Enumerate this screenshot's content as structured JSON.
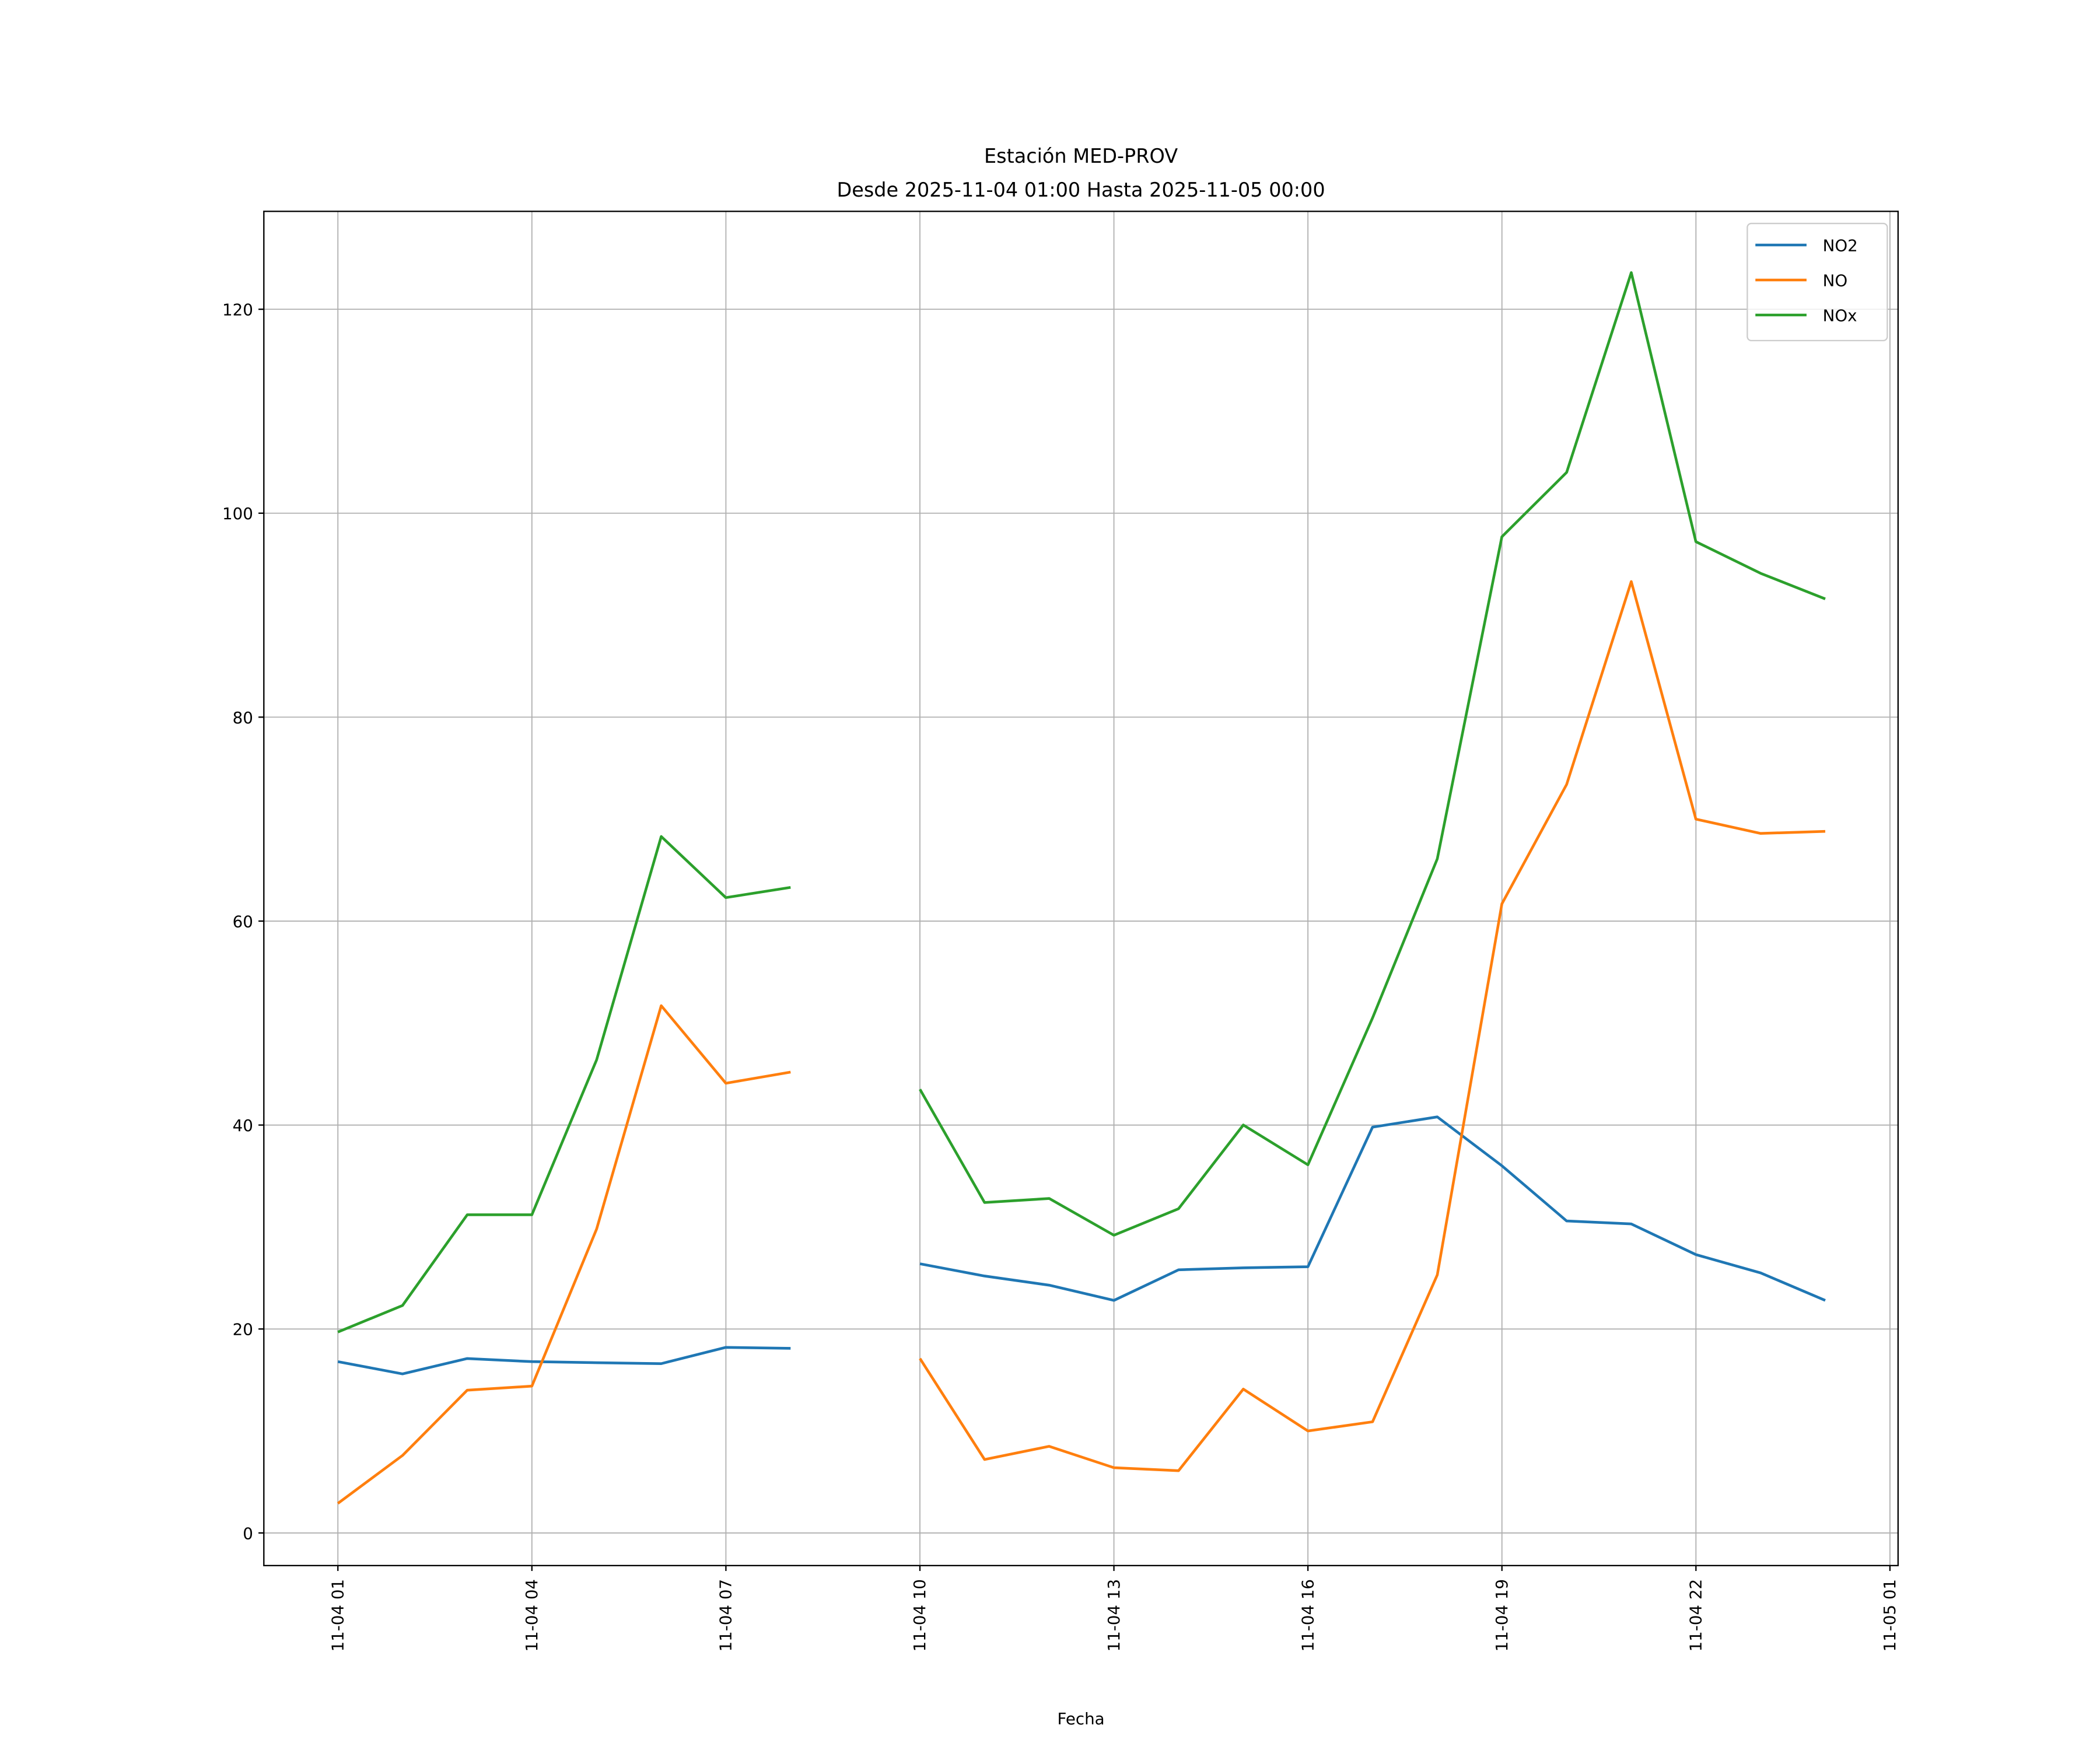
{
  "chart_data": {
    "type": "line",
    "title": "Estación MED-PROV",
    "subtitle": "Desde 2025-11-04 01:00 Hasta 2025-11-05 00:00",
    "xlabel": "Fecha",
    "ylabel": "",
    "x_hours": [
      1,
      2,
      3,
      4,
      5,
      6,
      7,
      8,
      9,
      10,
      11,
      12,
      13,
      14,
      15,
      16,
      17,
      18,
      19,
      20,
      21,
      22,
      23,
      24
    ],
    "xlim": [
      -0.15,
      24.3
    ],
    "ylim": [
      -3.2,
      129.6
    ],
    "xticks": [
      {
        "hour": 1,
        "label": "11-04 01"
      },
      {
        "hour": 4,
        "label": "11-04 04"
      },
      {
        "hour": 7,
        "label": "11-04 07"
      },
      {
        "hour": 10,
        "label": "11-04 10"
      },
      {
        "hour": 13,
        "label": "11-04 13"
      },
      {
        "hour": 16,
        "label": "11-04 16"
      },
      {
        "hour": 19,
        "label": "11-04 19"
      },
      {
        "hour": 22,
        "label": "11-04 22"
      },
      {
        "hour": 25,
        "label": "11-05 01"
      }
    ],
    "yticks": [
      0,
      20,
      40,
      60,
      80,
      100,
      120
    ],
    "grid": true,
    "legend_position": "top-right",
    "series": [
      {
        "name": "NO2",
        "color": "#1f77b4",
        "values": [
          16.8,
          15.6,
          17.1,
          16.8,
          16.7,
          16.6,
          18.2,
          18.1,
          null,
          26.4,
          25.2,
          24.3,
          22.8,
          25.8,
          26.0,
          26.1,
          39.8,
          40.8,
          36.0,
          30.6,
          30.3,
          27.3,
          25.5,
          22.8
        ]
      },
      {
        "name": "NO",
        "color": "#ff7f0e",
        "values": [
          2.9,
          7.6,
          14.0,
          14.4,
          29.8,
          51.7,
          44.1,
          45.2,
          null,
          17.1,
          7.2,
          8.5,
          6.4,
          6.1,
          14.1,
          10.0,
          10.9,
          25.3,
          61.7,
          73.4,
          93.3,
          70.0,
          68.6,
          68.8
        ]
      },
      {
        "name": "NOx",
        "color": "#2ca02c",
        "values": [
          19.7,
          22.3,
          31.2,
          31.2,
          46.4,
          68.3,
          62.3,
          63.3,
          null,
          43.5,
          32.4,
          32.8,
          29.2,
          31.8,
          40.0,
          36.1,
          50.5,
          66.1,
          97.7,
          104.0,
          123.6,
          97.2,
          94.1,
          91.6
        ]
      }
    ]
  }
}
